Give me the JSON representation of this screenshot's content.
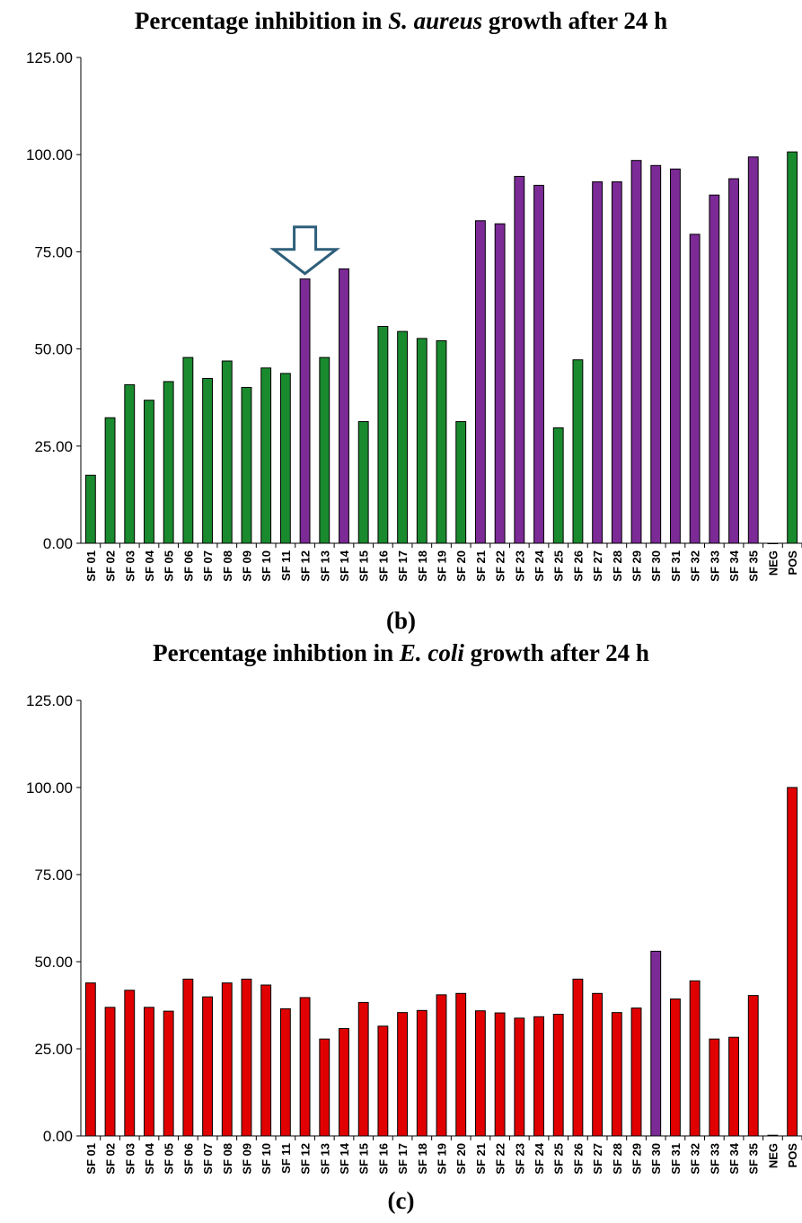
{
  "charts": [
    {
      "title_parts": [
        "Percentage inhibition in ",
        "S. aureus",
        " growth after 24 h"
      ],
      "panel_label_parts": [
        "(",
        "b",
        ")"
      ]
    },
    {
      "title_parts": [
        "Percentage inhibtion in ",
        "E. coli",
        "  growth after 24 h"
      ],
      "panel_label_parts": [
        "(",
        "c",
        ")"
      ]
    }
  ],
  "colors": {
    "green": "#1a8a2e",
    "purple": "#7b2a96",
    "red": "#e00000",
    "arrow": "#2e5f7a"
  },
  "chart_data": [
    {
      "type": "bar",
      "title": "Percentage inhibition in S. aureus growth after 24 h",
      "xlabel": "",
      "ylabel": "",
      "ylim": [
        0,
        125
      ],
      "yticks": [
        "0.00",
        "25.00",
        "50.00",
        "75.00",
        "100.00",
        "125.00"
      ],
      "categories": [
        "SF 01",
        "SF 02",
        "SF 03",
        "SF 04",
        "SF 05",
        "SF 06",
        "SF 07",
        "SF 08",
        "SF 09",
        "SF 10",
        "SF 11",
        "SF 12",
        "SF 13",
        "SF 14",
        "SF 15",
        "SF 16",
        "SF 17",
        "SF 18",
        "SF 19",
        "SF 20",
        "SF 21",
        "SF 22",
        "SF 23",
        "SF 24",
        "SF 25",
        "SF 26",
        "SF 27",
        "SF 28",
        "SF 29",
        "SF 30",
        "SF 31",
        "SF 32",
        "SF 33",
        "SF 34",
        "SF 35",
        "NEG",
        "POS"
      ],
      "values": [
        17.5,
        32.3,
        40.8,
        36.8,
        41.6,
        47.8,
        42.4,
        46.9,
        40.1,
        45.1,
        43.7,
        68.0,
        47.8,
        70.6,
        31.3,
        55.8,
        54.5,
        52.7,
        52.1,
        31.3,
        83.0,
        82.2,
        94.4,
        92.1,
        29.7,
        47.2,
        93.0,
        93.0,
        98.5,
        97.2,
        96.3,
        79.5,
        89.6,
        93.8,
        99.4,
        0,
        100.7
      ],
      "bar_colors": [
        "green",
        "green",
        "green",
        "green",
        "green",
        "green",
        "green",
        "green",
        "green",
        "green",
        "green",
        "purple",
        "green",
        "purple",
        "green",
        "green",
        "green",
        "green",
        "green",
        "green",
        "purple",
        "purple",
        "purple",
        "purple",
        "green",
        "green",
        "purple",
        "purple",
        "purple",
        "purple",
        "purple",
        "purple",
        "purple",
        "purple",
        "purple",
        "green",
        "green"
      ],
      "annotations": [
        {
          "type": "arrow",
          "points_to": "SF 12"
        }
      ],
      "grid": false
    },
    {
      "type": "bar",
      "title": "Percentage inhibtion in E. coli growth after 24 h",
      "xlabel": "",
      "ylabel": "",
      "ylim": [
        0,
        125
      ],
      "yticks": [
        "0.00",
        "25.00",
        "50.00",
        "75.00",
        "100.00",
        "125.00"
      ],
      "categories": [
        "SF 01",
        "SF 02",
        "SF 03",
        "SF 04",
        "SF 05",
        "SF 06",
        "SF 07",
        "SF 08",
        "SF 09",
        "SF 10",
        "SF 11",
        "SF 12",
        "SF 13",
        "SF 14",
        "SF 15",
        "SF 16",
        "SF 17",
        "SF 18",
        "SF 19",
        "SF 20",
        "SF 21",
        "SF 22",
        "SF 23",
        "SF 24",
        "SF 25",
        "SF 26",
        "SF 27",
        "SF 28",
        "SF 29",
        "SF 30",
        "SF 31",
        "SF 32",
        "SF 33",
        "SF 34",
        "SF 35",
        "NEG",
        "POS"
      ],
      "values": [
        43.9,
        36.9,
        41.8,
        36.9,
        35.8,
        45.0,
        39.9,
        43.9,
        45.0,
        43.3,
        36.5,
        39.7,
        27.8,
        30.8,
        38.3,
        31.5,
        35.4,
        36.0,
        40.5,
        40.9,
        35.9,
        35.3,
        33.8,
        34.2,
        34.9,
        45.0,
        40.9,
        35.4,
        36.7,
        53.0,
        39.3,
        44.5,
        27.8,
        28.3,
        40.3,
        0.2,
        100.0
      ],
      "bar_colors": [
        "red",
        "red",
        "red",
        "red",
        "red",
        "red",
        "red",
        "red",
        "red",
        "red",
        "red",
        "red",
        "red",
        "red",
        "red",
        "red",
        "red",
        "red",
        "red",
        "red",
        "red",
        "red",
        "red",
        "red",
        "red",
        "red",
        "red",
        "red",
        "red",
        "purple",
        "red",
        "red",
        "red",
        "red",
        "red",
        "red",
        "red"
      ],
      "grid": false
    }
  ]
}
